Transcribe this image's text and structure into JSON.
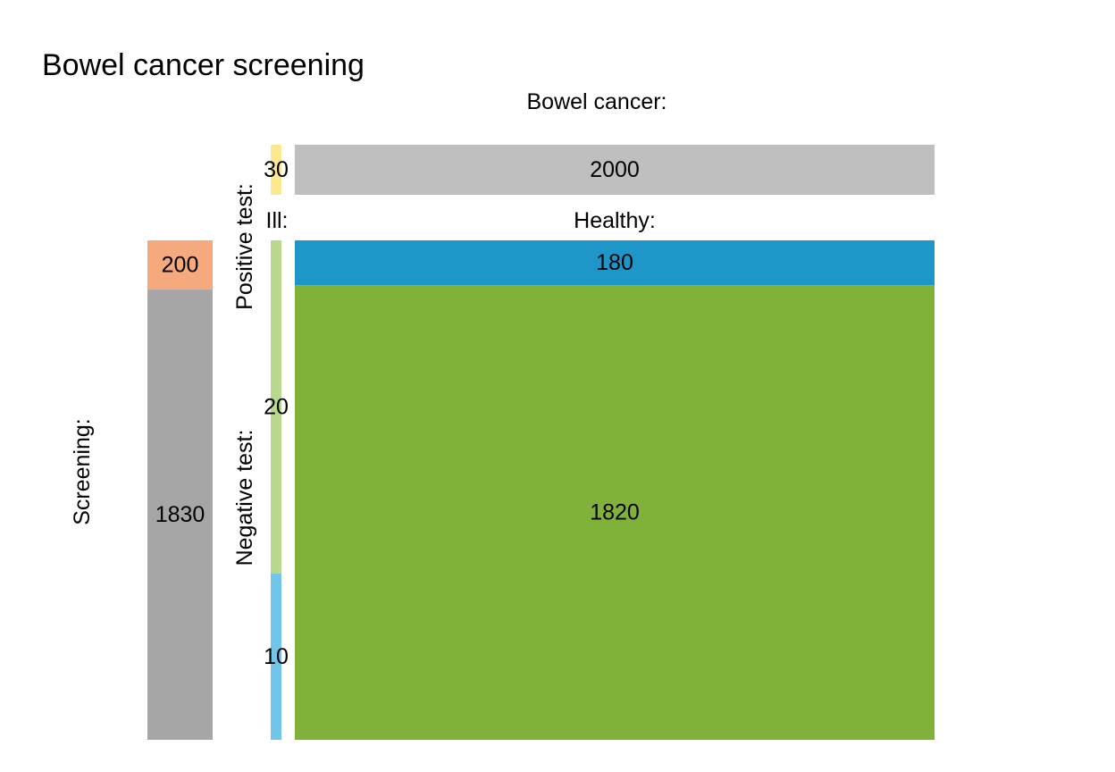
{
  "chart_data": {
    "type": "mosaic",
    "title": "Bowel cancer screening",
    "labels": {
      "bowel_cancer": "Bowel cancer:",
      "ill": "Ill:",
      "healthy": "Healthy:",
      "positive_test": "Positive test:",
      "negative_test": "Negative test:",
      "screening": "Screening:"
    },
    "cells": {
      "ill_total": {
        "value": 30,
        "label": "30",
        "color": "#fce98f"
      },
      "healthy_total": {
        "value": 2000,
        "label": "2000",
        "color": "#bfbfbf"
      },
      "screen_positive": {
        "value": 200,
        "label": "200",
        "color": "#f6a97d"
      },
      "screen_negative": {
        "value": 1830,
        "label": "1830",
        "color": "#a6a6a6"
      },
      "ill_positive": {
        "value": 20,
        "label": "20",
        "color": "#b8d98c"
      },
      "ill_negative": {
        "value": 10,
        "label": "10",
        "color": "#71c4ea"
      },
      "healthy_positive": {
        "value": 180,
        "label": "180",
        "color": "#1f96c8"
      },
      "healthy_negative": {
        "value": 1820,
        "label": "1820",
        "color": "#80b23a"
      }
    }
  }
}
